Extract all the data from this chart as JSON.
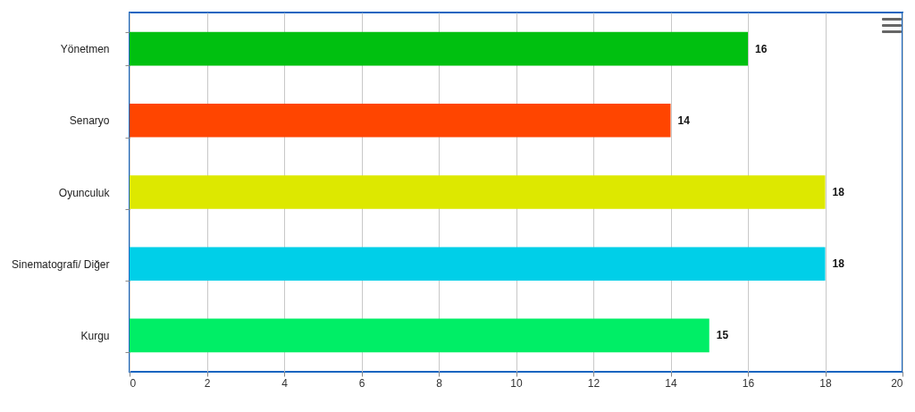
{
  "chart_data": {
    "type": "bar",
    "orientation": "horizontal",
    "categories": [
      "Yönetmen",
      "Senaryo",
      "Oyunculuk",
      "Sinematografi/ Diğer",
      "Kurgu"
    ],
    "values": [
      16,
      14,
      18,
      18,
      15
    ],
    "colors": [
      "#00c010",
      "#ff4500",
      "#dde800",
      "#00cfe8",
      "#00ee66"
    ],
    "xlim": [
      0,
      20
    ],
    "xticks": [
      0,
      2,
      4,
      6,
      8,
      10,
      12,
      14,
      16,
      18,
      20
    ],
    "grid": "x",
    "data_labels": true
  }
}
